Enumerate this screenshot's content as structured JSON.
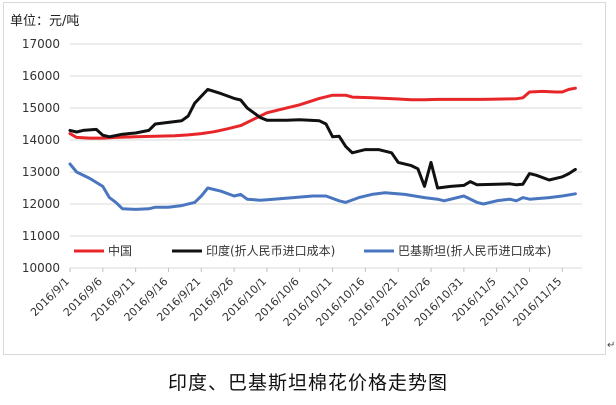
{
  "caption": "印度、巴基斯坦棉花价格走势图",
  "caption_mark": "↵",
  "chart_data": {
    "type": "line",
    "unit_label": "单位：元/吨",
    "ylim": [
      10000,
      17000
    ],
    "yticks": [
      10000,
      11000,
      12000,
      13000,
      14000,
      15000,
      16000,
      17000
    ],
    "xlim": [
      "2016-09-01",
      "2016-11-18"
    ],
    "xticks": [
      {
        "date": "2016-09-01",
        "label": "2016/9/1"
      },
      {
        "date": "2016-09-06",
        "label": "2016/9/6"
      },
      {
        "date": "2016-09-11",
        "label": "2016/9/11"
      },
      {
        "date": "2016-09-16",
        "label": "2016/9/16"
      },
      {
        "date": "2016-09-21",
        "label": "2016/9/21"
      },
      {
        "date": "2016-09-26",
        "label": "2016/9/26"
      },
      {
        "date": "2016-10-01",
        "label": "2016/10/1"
      },
      {
        "date": "2016-10-06",
        "label": "2016/10/6"
      },
      {
        "date": "2016-10-11",
        "label": "2016/10/11"
      },
      {
        "date": "2016-10-16",
        "label": "2016/10/16"
      },
      {
        "date": "2016-10-21",
        "label": "2016/10/21"
      },
      {
        "date": "2016-10-26",
        "label": "2016/10/26"
      },
      {
        "date": "2016-10-31",
        "label": "2016/10/31"
      },
      {
        "date": "2016-11-05",
        "label": "2016/11/5"
      },
      {
        "date": "2016-11-10",
        "label": "2016/11/10"
      },
      {
        "date": "2016-11-15",
        "label": "2016/11/15"
      }
    ],
    "grid": "horizontal",
    "legend_position": "bottom",
    "series": [
      {
        "name": "中国",
        "color": "#e8262a",
        "points": [
          [
            "2016-09-01",
            14200
          ],
          [
            "2016-09-02",
            14080
          ],
          [
            "2016-09-04",
            14060
          ],
          [
            "2016-09-06",
            14060
          ],
          [
            "2016-09-08",
            14080
          ],
          [
            "2016-09-11",
            14100
          ],
          [
            "2016-09-14",
            14120
          ],
          [
            "2016-09-17",
            14130
          ],
          [
            "2016-09-19",
            14160
          ],
          [
            "2016-09-21",
            14200
          ],
          [
            "2016-09-23",
            14260
          ],
          [
            "2016-09-25",
            14350
          ],
          [
            "2016-09-27",
            14450
          ],
          [
            "2016-09-29",
            14650
          ],
          [
            "2016-10-01",
            14850
          ],
          [
            "2016-10-03",
            14950
          ],
          [
            "2016-10-06",
            15100
          ],
          [
            "2016-10-09",
            15300
          ],
          [
            "2016-10-11",
            15400
          ],
          [
            "2016-10-13",
            15400
          ],
          [
            "2016-10-14",
            15340
          ],
          [
            "2016-10-17",
            15320
          ],
          [
            "2016-10-19",
            15300
          ],
          [
            "2016-10-21",
            15280
          ],
          [
            "2016-10-23",
            15260
          ],
          [
            "2016-10-25",
            15260
          ],
          [
            "2016-10-27",
            15270
          ],
          [
            "2016-10-31",
            15270
          ],
          [
            "2016-11-03",
            15270
          ],
          [
            "2016-11-06",
            15280
          ],
          [
            "2016-11-08",
            15290
          ],
          [
            "2016-11-09",
            15320
          ],
          [
            "2016-11-10",
            15500
          ],
          [
            "2016-11-12",
            15520
          ],
          [
            "2016-11-14",
            15500
          ],
          [
            "2016-11-15",
            15500
          ],
          [
            "2016-11-16",
            15580
          ],
          [
            "2016-11-17",
            15620
          ]
        ]
      },
      {
        "name": "印度(折人民币进口成本)",
        "color": "#111111",
        "points": [
          [
            "2016-09-01",
            14300
          ],
          [
            "2016-09-02",
            14250
          ],
          [
            "2016-09-03",
            14300
          ],
          [
            "2016-09-05",
            14330
          ],
          [
            "2016-09-06",
            14150
          ],
          [
            "2016-09-07",
            14100
          ],
          [
            "2016-09-09",
            14180
          ],
          [
            "2016-09-11",
            14220
          ],
          [
            "2016-09-13",
            14300
          ],
          [
            "2016-09-14",
            14500
          ],
          [
            "2016-09-16",
            14550
          ],
          [
            "2016-09-18",
            14600
          ],
          [
            "2016-09-19",
            14750
          ],
          [
            "2016-09-20",
            15150
          ],
          [
            "2016-09-22",
            15580
          ],
          [
            "2016-09-24",
            15450
          ],
          [
            "2016-09-26",
            15300
          ],
          [
            "2016-09-27",
            15250
          ],
          [
            "2016-09-28",
            15000
          ],
          [
            "2016-09-30",
            14700
          ],
          [
            "2016-10-01",
            14620
          ],
          [
            "2016-10-04",
            14620
          ],
          [
            "2016-10-06",
            14630
          ],
          [
            "2016-10-09",
            14600
          ],
          [
            "2016-10-10",
            14500
          ],
          [
            "2016-10-11",
            14100
          ],
          [
            "2016-10-12",
            14120
          ],
          [
            "2016-10-13",
            13800
          ],
          [
            "2016-10-14",
            13600
          ],
          [
            "2016-10-15",
            13650
          ],
          [
            "2016-10-16",
            13700
          ],
          [
            "2016-10-18",
            13700
          ],
          [
            "2016-10-19",
            13650
          ],
          [
            "2016-10-20",
            13600
          ],
          [
            "2016-10-21",
            13300
          ],
          [
            "2016-10-23",
            13200
          ],
          [
            "2016-10-24",
            13100
          ],
          [
            "2016-10-25",
            12550
          ],
          [
            "2016-10-26",
            13300
          ],
          [
            "2016-10-27",
            12500
          ],
          [
            "2016-10-29",
            12550
          ],
          [
            "2016-10-31",
            12580
          ],
          [
            "2016-11-01",
            12700
          ],
          [
            "2016-11-02",
            12600
          ],
          [
            "2016-11-05",
            12620
          ],
          [
            "2016-11-07",
            12630
          ],
          [
            "2016-11-08",
            12600
          ],
          [
            "2016-11-09",
            12620
          ],
          [
            "2016-11-10",
            12950
          ],
          [
            "2016-11-11",
            12900
          ],
          [
            "2016-11-13",
            12750
          ],
          [
            "2016-11-14",
            12800
          ],
          [
            "2016-11-15",
            12850
          ],
          [
            "2016-11-16",
            12950
          ],
          [
            "2016-11-17",
            13080
          ]
        ]
      },
      {
        "name": "巴基斯坦(折人民币进口成本)",
        "color": "#4a76c0",
        "points": [
          [
            "2016-09-01",
            13250
          ],
          [
            "2016-09-02",
            13000
          ],
          [
            "2016-09-04",
            12800
          ],
          [
            "2016-09-06",
            12550
          ],
          [
            "2016-09-07",
            12200
          ],
          [
            "2016-09-08",
            12050
          ],
          [
            "2016-09-09",
            11850
          ],
          [
            "2016-09-11",
            11830
          ],
          [
            "2016-09-13",
            11850
          ],
          [
            "2016-09-14",
            11900
          ],
          [
            "2016-09-16",
            11900
          ],
          [
            "2016-09-18",
            11950
          ],
          [
            "2016-09-20",
            12050
          ],
          [
            "2016-09-21",
            12250
          ],
          [
            "2016-09-22",
            12500
          ],
          [
            "2016-09-24",
            12400
          ],
          [
            "2016-09-26",
            12250
          ],
          [
            "2016-09-27",
            12300
          ],
          [
            "2016-09-28",
            12150
          ],
          [
            "2016-09-30",
            12120
          ],
          [
            "2016-10-02",
            12150
          ],
          [
            "2016-10-05",
            12200
          ],
          [
            "2016-10-08",
            12250
          ],
          [
            "2016-10-10",
            12250
          ],
          [
            "2016-10-12",
            12100
          ],
          [
            "2016-10-13",
            12050
          ],
          [
            "2016-10-15",
            12200
          ],
          [
            "2016-10-17",
            12300
          ],
          [
            "2016-10-19",
            12350
          ],
          [
            "2016-10-22",
            12300
          ],
          [
            "2016-10-25",
            12200
          ],
          [
            "2016-10-27",
            12150
          ],
          [
            "2016-10-28",
            12100
          ],
          [
            "2016-10-31",
            12250
          ],
          [
            "2016-11-02",
            12050
          ],
          [
            "2016-11-03",
            12000
          ],
          [
            "2016-11-05",
            12100
          ],
          [
            "2016-11-07",
            12150
          ],
          [
            "2016-11-08",
            12100
          ],
          [
            "2016-11-09",
            12200
          ],
          [
            "2016-11-10",
            12150
          ],
          [
            "2016-11-13",
            12200
          ],
          [
            "2016-11-15",
            12250
          ],
          [
            "2016-11-17",
            12320
          ]
        ]
      }
    ]
  }
}
